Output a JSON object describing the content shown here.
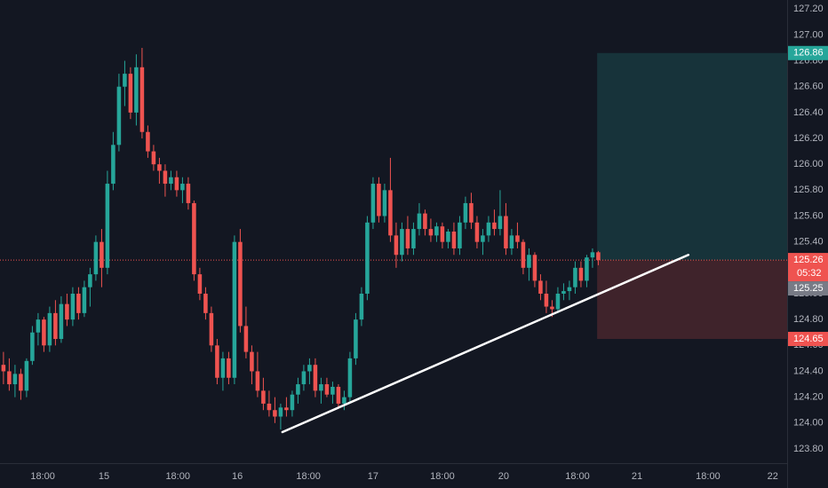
{
  "chart_data": {
    "type": "candlestick",
    "up_color": "#26a69a",
    "down_color": "#ef5350",
    "xlim": [
      -0.6,
      135.7
    ],
    "xticks": [
      {
        "value": 6.8,
        "label": "18:00"
      },
      {
        "value": 17.4,
        "label": "15"
      },
      {
        "value": 30.2,
        "label": "18:00"
      },
      {
        "value": 40.5,
        "label": "16"
      },
      {
        "value": 52.8,
        "label": "18:00"
      },
      {
        "value": 64,
        "label": "17"
      },
      {
        "value": 76,
        "label": "18:00"
      },
      {
        "value": 86.6,
        "label": "20"
      },
      {
        "value": 99.4,
        "label": "18:00"
      },
      {
        "value": 109.7,
        "label": "21"
      },
      {
        "value": 122,
        "label": "18:00"
      },
      {
        "value": 133.2,
        "label": "22"
      }
    ],
    "ylim": [
      123.69,
      127.27
    ],
    "yticks": [
      {
        "value": 123.8,
        "label": "123.80"
      },
      {
        "value": 124.0,
        "label": "124.00"
      },
      {
        "value": 124.2,
        "label": "124.20"
      },
      {
        "value": 124.4,
        "label": "124.40"
      },
      {
        "value": 124.6,
        "label": "124.60"
      },
      {
        "value": 124.8,
        "label": "124.80"
      },
      {
        "value": 125.0,
        "label": "125.00"
      },
      {
        "value": 125.2,
        "label": "125.20"
      },
      {
        "value": 125.4,
        "label": "125.40"
      },
      {
        "value": 125.6,
        "label": "125.60"
      },
      {
        "value": 125.8,
        "label": "125.80"
      },
      {
        "value": 126.0,
        "label": "126.00"
      },
      {
        "value": 126.2,
        "label": "126.20"
      },
      {
        "value": 126.4,
        "label": "126.40"
      },
      {
        "value": 126.6,
        "label": "126.60"
      },
      {
        "value": 126.8,
        "label": "126.80"
      },
      {
        "value": 127.0,
        "label": "127.00"
      },
      {
        "value": 127.2,
        "label": "127.20"
      }
    ],
    "grid": false,
    "candles": [
      [
        124.45,
        124.55,
        124.3,
        124.4
      ],
      [
        124.4,
        124.5,
        124.25,
        124.3
      ],
      [
        124.3,
        124.45,
        124.2,
        124.38
      ],
      [
        124.38,
        124.42,
        124.18,
        124.25
      ],
      [
        124.25,
        124.5,
        124.2,
        124.48
      ],
      [
        124.48,
        124.75,
        124.45,
        124.7
      ],
      [
        124.7,
        124.85,
        124.6,
        124.8
      ],
      [
        124.8,
        124.82,
        124.55,
        124.6
      ],
      [
        124.6,
        124.9,
        124.55,
        124.85
      ],
      [
        124.85,
        124.95,
        124.6,
        124.65
      ],
      [
        124.65,
        124.98,
        124.62,
        124.92
      ],
      [
        124.92,
        125.0,
        124.75,
        124.8
      ],
      [
        124.8,
        125.05,
        124.75,
        125.0
      ],
      [
        125.0,
        125.05,
        124.8,
        124.85
      ],
      [
        124.85,
        125.1,
        124.82,
        125.05
      ],
      [
        125.05,
        125.2,
        124.9,
        125.15
      ],
      [
        125.15,
        125.45,
        125.1,
        125.4
      ],
      [
        125.4,
        125.5,
        125.05,
        125.2
      ],
      [
        125.2,
        125.95,
        125.15,
        125.85
      ],
      [
        125.85,
        126.25,
        125.8,
        126.15
      ],
      [
        126.15,
        126.7,
        126.1,
        126.6
      ],
      [
        126.6,
        126.8,
        126.45,
        126.7
      ],
      [
        126.7,
        126.75,
        126.35,
        126.4
      ],
      [
        126.4,
        126.85,
        126.3,
        126.75
      ],
      [
        126.75,
        126.9,
        126.2,
        126.25
      ],
      [
        126.25,
        126.3,
        126.05,
        126.1
      ],
      [
        126.1,
        126.15,
        125.95,
        126.0
      ],
      [
        126.0,
        126.05,
        125.85,
        125.95
      ],
      [
        125.95,
        126.0,
        125.75,
        125.85
      ],
      [
        125.85,
        125.95,
        125.8,
        125.9
      ],
      [
        125.9,
        125.95,
        125.75,
        125.8
      ],
      [
        125.8,
        125.9,
        125.7,
        125.85
      ],
      [
        125.85,
        125.9,
        125.65,
        125.7
      ],
      [
        125.7,
        125.72,
        125.1,
        125.15
      ],
      [
        125.15,
        125.2,
        124.95,
        125.0
      ],
      [
        125.0,
        125.05,
        124.8,
        124.85
      ],
      [
        124.85,
        124.9,
        124.55,
        124.6
      ],
      [
        124.6,
        124.65,
        124.3,
        124.35
      ],
      [
        124.35,
        124.55,
        124.25,
        124.5
      ],
      [
        124.5,
        124.55,
        124.3,
        124.35
      ],
      [
        124.35,
        125.45,
        124.3,
        125.4
      ],
      [
        125.4,
        125.5,
        124.7,
        124.75
      ],
      [
        124.75,
        124.9,
        124.5,
        124.55
      ],
      [
        124.55,
        124.6,
        124.3,
        124.4
      ],
      [
        124.4,
        124.55,
        124.2,
        124.25
      ],
      [
        124.25,
        124.35,
        124.1,
        124.15
      ],
      [
        124.15,
        124.25,
        124.05,
        124.1
      ],
      [
        124.1,
        124.2,
        124.0,
        124.05
      ],
      [
        124.05,
        124.15,
        123.95,
        124.12
      ],
      [
        124.12,
        124.2,
        124.05,
        124.1
      ],
      [
        124.1,
        124.25,
        124.05,
        124.22
      ],
      [
        124.22,
        124.35,
        124.15,
        124.3
      ],
      [
        124.3,
        124.45,
        124.25,
        124.4
      ],
      [
        124.4,
        124.5,
        124.3,
        124.45
      ],
      [
        124.45,
        124.5,
        124.2,
        124.25
      ],
      [
        124.25,
        124.35,
        124.15,
        124.3
      ],
      [
        124.3,
        124.35,
        124.2,
        124.22
      ],
      [
        124.22,
        124.32,
        124.15,
        124.28
      ],
      [
        124.28,
        124.3,
        124.12,
        124.15
      ],
      [
        124.15,
        124.25,
        124.1,
        124.2
      ],
      [
        124.2,
        124.55,
        124.15,
        124.5
      ],
      [
        124.5,
        124.85,
        124.45,
        124.8
      ],
      [
        124.8,
        125.05,
        124.75,
        125.0
      ],
      [
        125.0,
        125.6,
        124.95,
        125.55
      ],
      [
        125.55,
        125.9,
        125.5,
        125.85
      ],
      [
        125.85,
        125.9,
        125.55,
        125.6
      ],
      [
        125.6,
        125.85,
        125.55,
        125.8
      ],
      [
        125.8,
        126.05,
        125.4,
        125.45
      ],
      [
        125.45,
        125.55,
        125.2,
        125.3
      ],
      [
        125.3,
        125.55,
        125.25,
        125.5
      ],
      [
        125.5,
        125.6,
        125.3,
        125.35
      ],
      [
        125.35,
        125.55,
        125.3,
        125.5
      ],
      [
        125.5,
        125.7,
        125.45,
        125.62
      ],
      [
        125.62,
        125.65,
        125.45,
        125.5
      ],
      [
        125.5,
        125.58,
        125.4,
        125.45
      ],
      [
        125.45,
        125.55,
        125.4,
        125.52
      ],
      [
        125.52,
        125.55,
        125.35,
        125.4
      ],
      [
        125.4,
        125.5,
        125.35,
        125.48
      ],
      [
        125.48,
        125.55,
        125.3,
        125.35
      ],
      [
        125.35,
        125.6,
        125.3,
        125.55
      ],
      [
        125.55,
        125.75,
        125.5,
        125.7
      ],
      [
        125.7,
        125.78,
        125.5,
        125.55
      ],
      [
        125.55,
        125.6,
        125.35,
        125.4
      ],
      [
        125.4,
        125.5,
        125.3,
        125.45
      ],
      [
        125.45,
        125.6,
        125.4,
        125.55
      ],
      [
        125.55,
        125.65,
        125.45,
        125.5
      ],
      [
        125.5,
        125.8,
        125.45,
        125.6
      ],
      [
        125.6,
        125.7,
        125.3,
        125.35
      ],
      [
        125.35,
        125.5,
        125.3,
        125.45
      ],
      [
        125.45,
        125.55,
        125.35,
        125.4
      ],
      [
        125.4,
        125.42,
        125.15,
        125.2
      ],
      [
        125.2,
        125.35,
        125.1,
        125.3
      ],
      [
        125.3,
        125.32,
        125.05,
        125.1
      ],
      [
        125.1,
        125.15,
        124.95,
        125.0
      ],
      [
        125.0,
        125.1,
        124.85,
        124.9
      ],
      [
        124.9,
        124.95,
        124.82,
        124.88
      ],
      [
        124.88,
        125.05,
        124.85,
        125.0
      ],
      [
        125.0,
        125.08,
        124.95,
        125.02
      ],
      [
        125.02,
        125.1,
        124.95,
        125.05
      ],
      [
        125.05,
        125.25,
        125.0,
        125.2
      ],
      [
        125.2,
        125.25,
        125.05,
        125.1
      ],
      [
        125.1,
        125.3,
        125.05,
        125.28
      ],
      [
        125.28,
        125.35,
        125.2,
        125.32
      ],
      [
        125.32,
        125.33,
        125.22,
        125.26
      ]
    ],
    "trendline": {
      "x": [
        48.3,
        118.6
      ],
      "y": [
        123.93,
        125.3
      ]
    },
    "position": {
      "x_start": 102.8,
      "target": 126.86,
      "entry": 125.26,
      "stop": 124.65
    },
    "last_price": 125.25,
    "countdown": "05:32"
  }
}
